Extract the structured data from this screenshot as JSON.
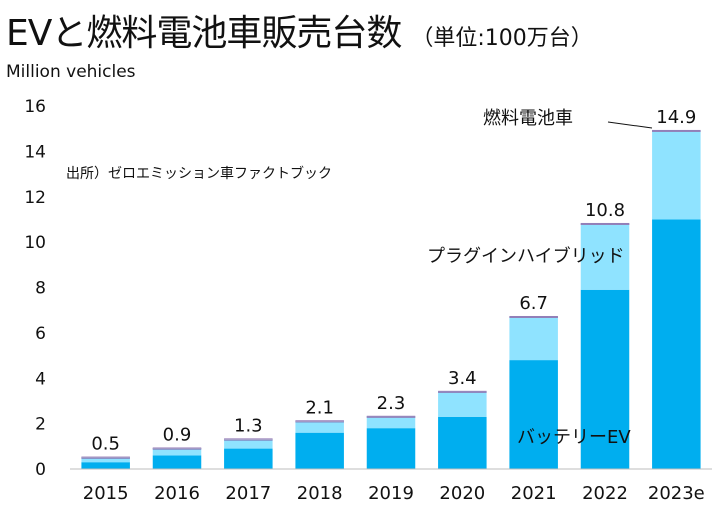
{
  "header": {
    "title": "EVと燃料電池車販売台数",
    "unit_note": "（単位:100万台）"
  },
  "source": "出所）ゼロエミッション車ファクトブック",
  "chart_data": {
    "type": "bar",
    "stacked": true,
    "title": "EVと燃料電池車販売台数",
    "ylabel": "Million vehicles",
    "xlabel": "",
    "ylim": [
      0,
      16
    ],
    "yticks": [
      0,
      2,
      4,
      6,
      8,
      10,
      12,
      14,
      16
    ],
    "categories": [
      "2015",
      "2016",
      "2017",
      "2018",
      "2019",
      "2020",
      "2021",
      "2022",
      "2023e"
    ],
    "series": [
      {
        "name": "バッテリーEV",
        "color": "#00aeef",
        "values": [
          0.3,
          0.6,
          0.9,
          1.6,
          1.8,
          2.3,
          4.8,
          7.9,
          11.0
        ]
      },
      {
        "name": "プラグインハイブリッド",
        "color": "#8fe3ff",
        "values": [
          0.2,
          0.3,
          0.4,
          0.5,
          0.5,
          1.1,
          1.9,
          2.9,
          3.9
        ]
      },
      {
        "name": "燃料電池車",
        "color": "#7b5ea7",
        "values": [
          0.0,
          0.0,
          0.0,
          0.0,
          0.0,
          0.0,
          0.0,
          0.0,
          0.0
        ]
      }
    ],
    "totals": [
      "0.5",
      "0.9",
      "1.3",
      "2.1",
      "2.3",
      "3.4",
      "6.7",
      "10.8",
      "14.9"
    ],
    "annotations": {
      "fcv": "燃料電池車",
      "phev": "プラグインハイブリッド",
      "bev": "バッテリーEV"
    }
  }
}
